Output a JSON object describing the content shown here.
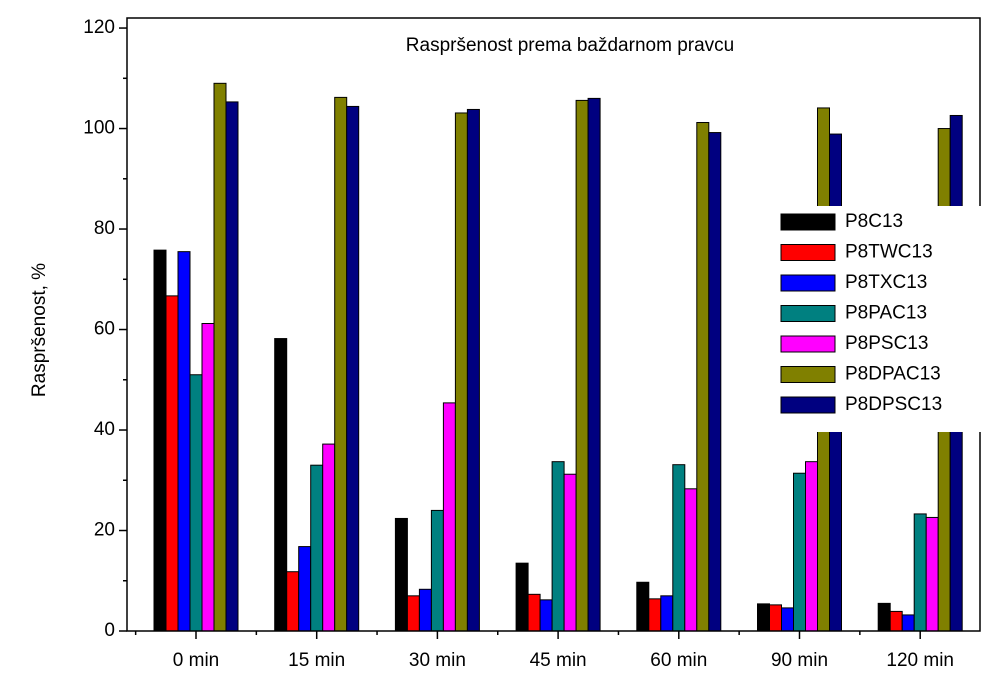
{
  "chart_data": {
    "type": "bar",
    "title": "Raspršenost prema baždarnom pravcu",
    "y_label": "Raspršenost, %",
    "categories": [
      "0 min",
      "15 min",
      "30 min",
      "45 min",
      "60 min",
      "90 min",
      "120 min"
    ],
    "series": [
      {
        "name": "P8C13",
        "color": "#000000",
        "values": [
          75.8,
          58.2,
          22.4,
          13.5,
          9.7,
          5.4,
          5.5
        ]
      },
      {
        "name": "P8TWC13",
        "color": "#ff0000",
        "values": [
          66.7,
          11.8,
          7.0,
          7.3,
          6.4,
          5.2,
          3.9
        ]
      },
      {
        "name": "P8TXC13",
        "color": "#0000ff",
        "values": [
          75.5,
          16.8,
          8.3,
          6.2,
          7.0,
          4.6,
          3.2
        ]
      },
      {
        "name": "P8PAC13",
        "color": "#008080",
        "values": [
          51.0,
          33.0,
          24.0,
          33.7,
          33.1,
          31.4,
          23.3
        ]
      },
      {
        "name": "P8PSC13",
        "color": "#ff00ff",
        "values": [
          61.2,
          37.2,
          45.4,
          31.2,
          28.3,
          33.7,
          22.6
        ]
      },
      {
        "name": "P8DPAC13",
        "color": "#808000",
        "values": [
          109.0,
          106.2,
          103.1,
          105.6,
          101.2,
          104.1,
          100.0
        ]
      },
      {
        "name": "P8DPSC13",
        "color": "#000080",
        "values": [
          105.3,
          104.4,
          103.8,
          106.0,
          99.2,
          98.9,
          102.6
        ]
      }
    ],
    "ylim": [
      0,
      122
    ],
    "yticks": [
      0,
      20,
      40,
      60,
      80,
      100,
      120
    ],
    "legend": "right"
  }
}
